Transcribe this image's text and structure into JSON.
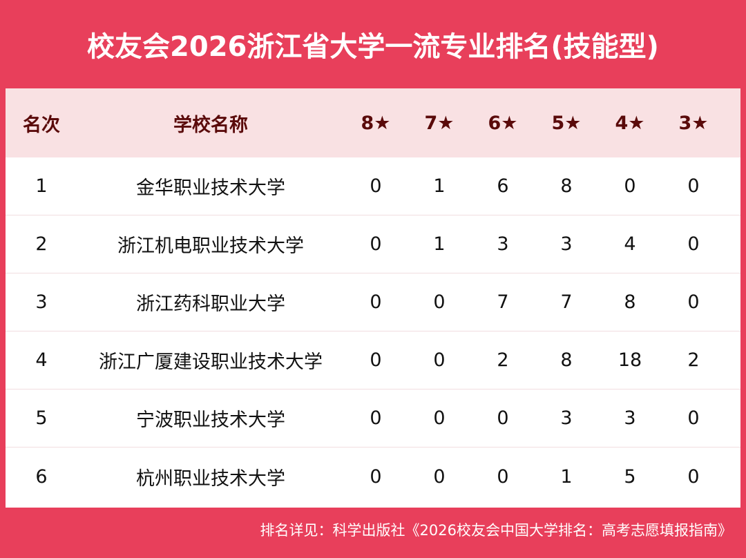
{
  "title": "校友会2026浙江省大学一流专业排名(技能型)",
  "columns": [
    "名次",
    "学校名称",
    "8★",
    "7★",
    "6★",
    "5★",
    "4★",
    "3★"
  ],
  "rows": [
    [
      "1",
      "金华职业技术大学",
      "0",
      "1",
      "6",
      "8",
      "0",
      "0"
    ],
    [
      "2",
      "浙江机电职业技术大学",
      "0",
      "1",
      "3",
      "3",
      "4",
      "0"
    ],
    [
      "3",
      "浙江药科职业大学",
      "0",
      "0",
      "7",
      "7",
      "8",
      "0"
    ],
    [
      "4",
      "浙江广厦建设职业技术大学",
      "0",
      "0",
      "2",
      "8",
      "18",
      "2"
    ],
    [
      "5",
      "宁波职业技术大学",
      "0",
      "0",
      "0",
      "3",
      "3",
      "0"
    ],
    [
      "6",
      "杭州职业技术大学",
      "0",
      "0",
      "0",
      "1",
      "5",
      "0"
    ]
  ],
  "footer": "排名详见：科学出版社《2026校友会中国大学排名：高考志愿填报指南》",
  "colors": {
    "frame": "#e83f5b",
    "header_bg": "#f9e1e3",
    "header_text": "#5a0a0a"
  }
}
